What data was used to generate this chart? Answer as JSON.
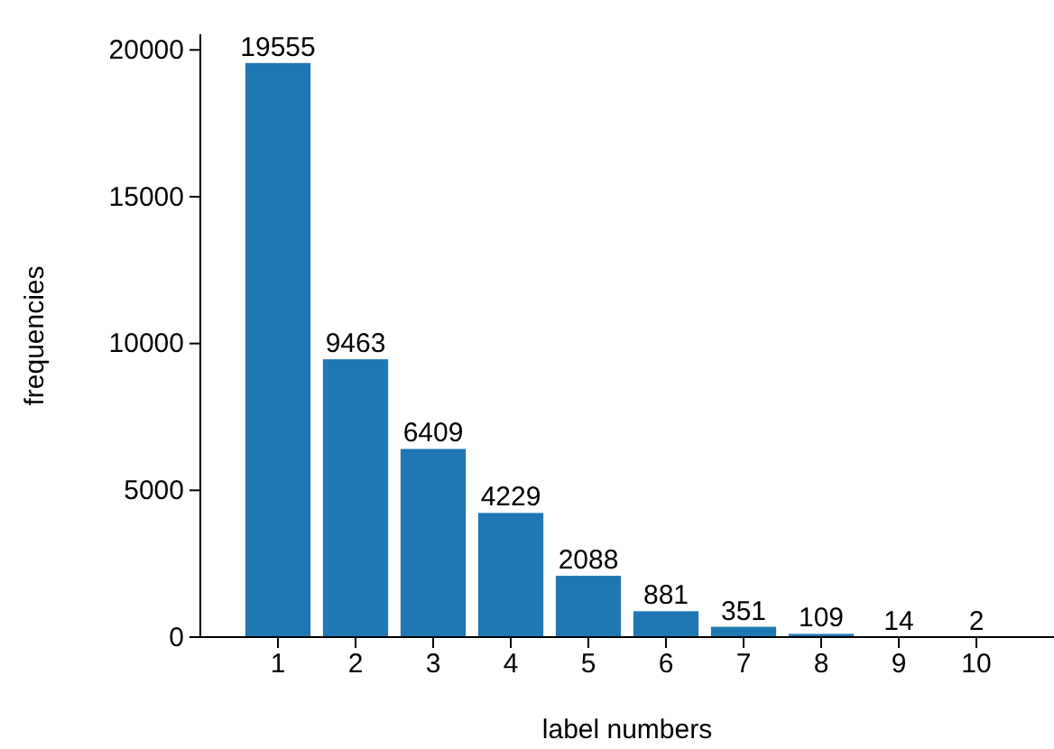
{
  "chart_data": {
    "type": "bar",
    "xlabel": "label numbers",
    "ylabel": "frequencies",
    "categories": [
      "1",
      "2",
      "3",
      "4",
      "5",
      "6",
      "7",
      "8",
      "9",
      "10"
    ],
    "values": [
      19555,
      9463,
      6409,
      4229,
      2088,
      881,
      351,
      109,
      14,
      2
    ],
    "color": "#1f77b4",
    "ylim": [
      0,
      20533
    ],
    "yticks": [
      0,
      5000,
      10000,
      15000,
      20000
    ],
    "data_labels": true,
    "grid": false
  }
}
